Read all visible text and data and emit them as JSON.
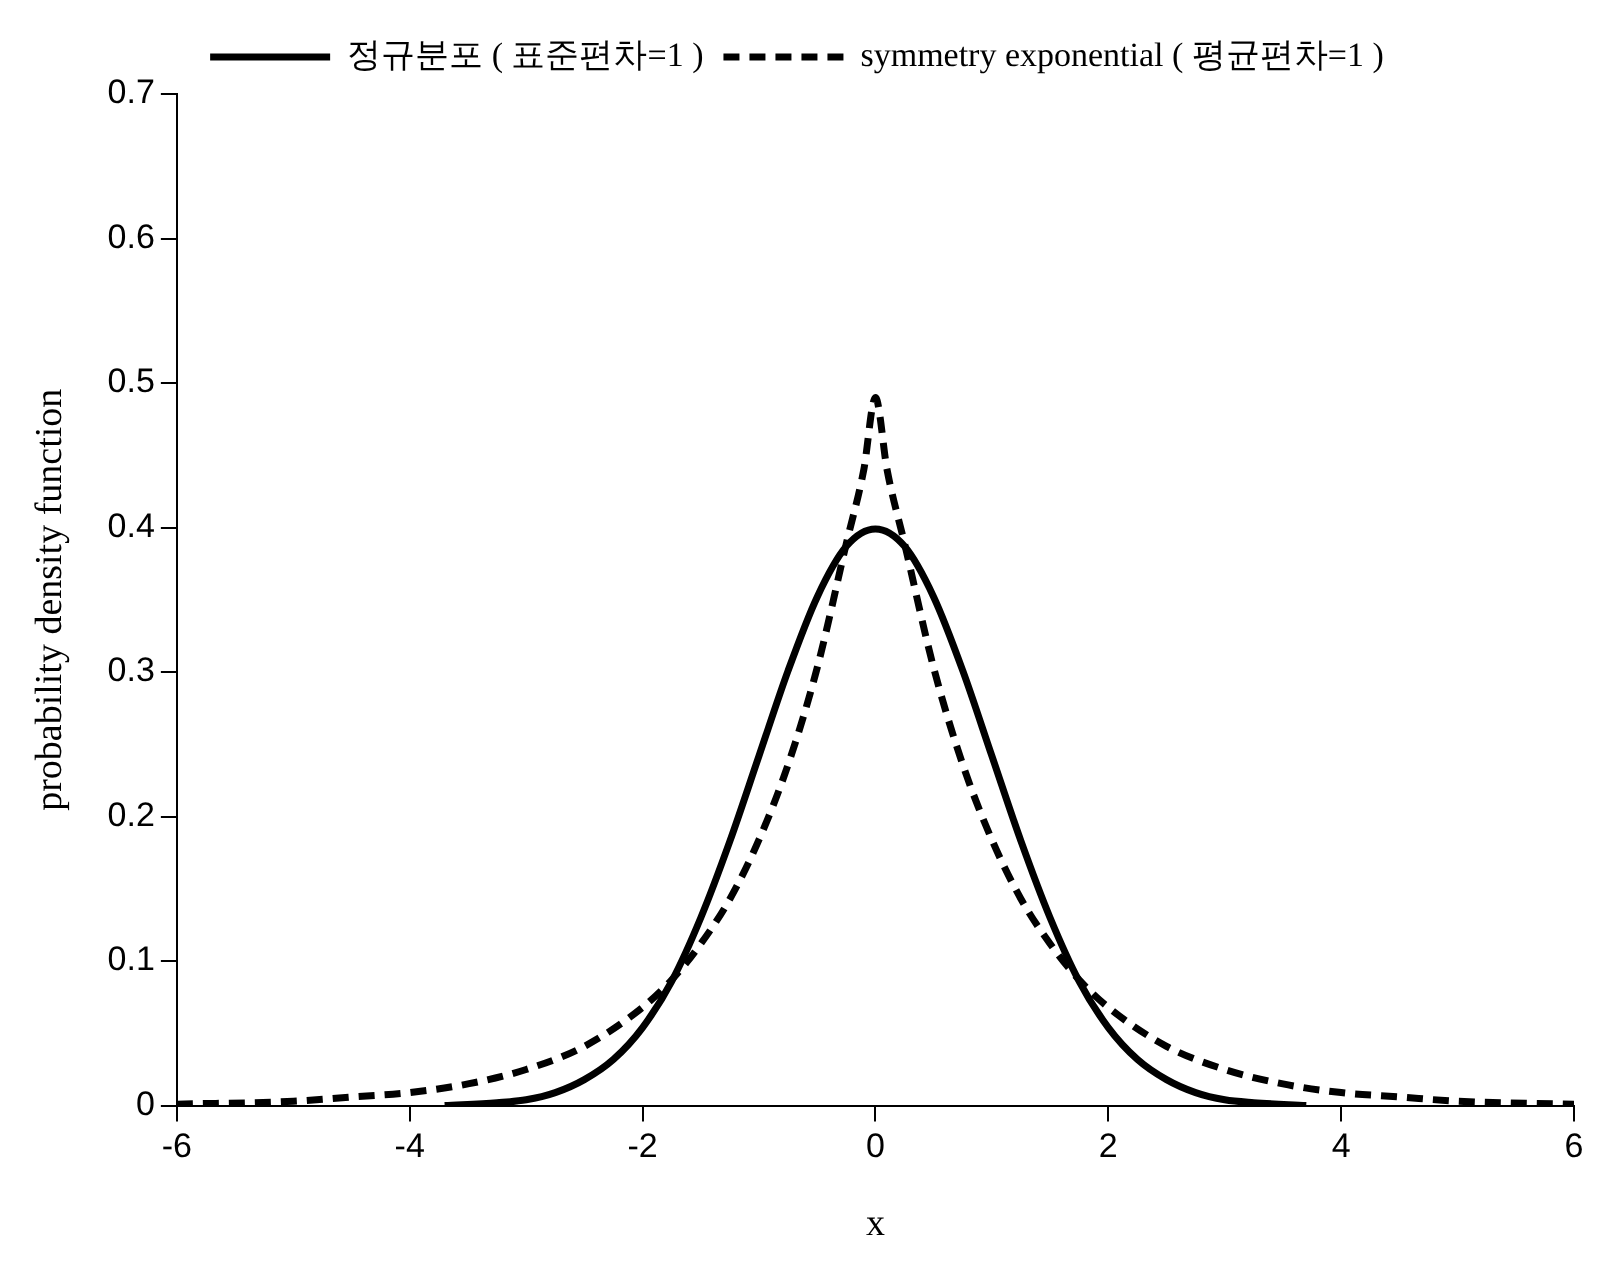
{
  "chart_data": {
    "type": "line",
    "xlabel": "x",
    "ylabel": "probability density function",
    "xlim": [
      -6,
      6
    ],
    "xticks": [
      -6,
      -4,
      -2,
      0,
      2,
      4,
      6
    ],
    "ylim": [
      0,
      0.7
    ],
    "yticks": [
      0,
      0.1,
      0.2,
      0.3,
      0.4,
      0.5,
      0.6,
      0.7
    ],
    "grid": false,
    "legend": "top",
    "marker": "none",
    "series": [
      {
        "name": "정규분포 ( 표준편차=1 )",
        "color": "#000000",
        "line_style": "solid",
        "x": [
          -3.7,
          -3.25,
          -3,
          -2.75,
          -2.5,
          -2.25,
          -2,
          -1.75,
          -1.5,
          -1.25,
          -1,
          -0.75,
          -0.5,
          -0.25,
          0,
          0.25,
          0.5,
          0.75,
          1,
          1.25,
          1.5,
          1.75,
          2,
          2.25,
          2.5,
          2.75,
          3,
          3.25,
          3.7
        ],
        "values": [
          0,
          0.002,
          0.004,
          0.009,
          0.018,
          0.032,
          0.054,
          0.086,
          0.13,
          0.183,
          0.242,
          0.301,
          0.352,
          0.387,
          0.399,
          0.387,
          0.352,
          0.301,
          0.242,
          0.183,
          0.13,
          0.086,
          0.054,
          0.032,
          0.018,
          0.009,
          0.004,
          0.002,
          0
        ]
      },
      {
        "name": "symmetry exponential ( 평균편차=1 )",
        "color": "#000000",
        "line_style": "dashed",
        "x": [
          -6,
          -5,
          -4.5,
          -4,
          -3.5,
          -3,
          -2.5,
          -2,
          -1.75,
          -1.5,
          -1.25,
          -1,
          -0.75,
          -0.5,
          -0.25,
          -0.1,
          0,
          0.1,
          0.25,
          0.5,
          0.75,
          1,
          1.25,
          1.5,
          1.75,
          2,
          2.5,
          3,
          3.5,
          4,
          4.5,
          5,
          6
        ],
        "values": [
          0.001,
          0.003,
          0.006,
          0.009,
          0.015,
          0.025,
          0.041,
          0.068,
          0.087,
          0.112,
          0.143,
          0.184,
          0.236,
          0.303,
          0.389,
          0.44,
          0.49,
          0.44,
          0.389,
          0.303,
          0.236,
          0.184,
          0.143,
          0.112,
          0.087,
          0.068,
          0.041,
          0.025,
          0.015,
          0.009,
          0.006,
          0.003,
          0.001
        ]
      }
    ]
  }
}
